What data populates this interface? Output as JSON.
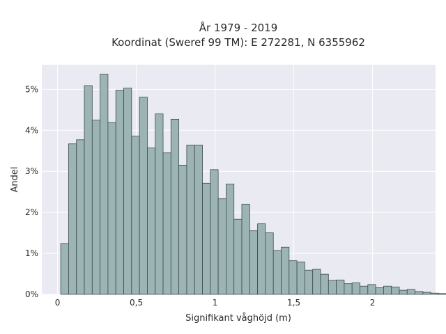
{
  "chart_data": {
    "type": "bar",
    "title": [
      "År 1979 - 2019",
      "Koordinat (Sweref 99 TM): E 272281, N 6355962"
    ],
    "xlabel": "Signifikant våghöjd (m)",
    "ylabel": "Andel",
    "xlim": [
      -0.1,
      2.4
    ],
    "ylim": [
      0,
      5.6
    ],
    "x_ticks": [
      0,
      0.5,
      1,
      1.5,
      2
    ],
    "x_tick_labels": [
      "0",
      "0,5",
      "1",
      "1,5",
      "2"
    ],
    "y_ticks": [
      0,
      1,
      2,
      3,
      4,
      5
    ],
    "y_tick_labels": [
      "0%",
      "1%",
      "2%",
      "3%",
      "4%",
      "5%"
    ],
    "grid": true,
    "bin_start": 0.02,
    "bin_width": 0.05,
    "values": [
      1.24,
      3.67,
      3.77,
      5.09,
      4.25,
      5.37,
      4.19,
      4.98,
      5.03,
      3.86,
      4.81,
      3.57,
      4.4,
      3.45,
      4.27,
      3.15,
      3.64,
      3.64,
      2.71,
      3.04,
      2.33,
      2.69,
      1.83,
      2.2,
      1.55,
      1.72,
      1.5,
      1.07,
      1.15,
      0.82,
      0.79,
      0.59,
      0.61,
      0.49,
      0.34,
      0.35,
      0.26,
      0.28,
      0.2,
      0.24,
      0.16,
      0.2,
      0.18,
      0.1,
      0.12,
      0.07,
      0.05,
      0.03,
      0.02,
      0.01
    ],
    "colors": {
      "bar_fill": "#9db4b4",
      "bar_edge": "#3c4a4a",
      "plot_bg": "#eaeaf2",
      "grid": "#ffffff"
    }
  }
}
